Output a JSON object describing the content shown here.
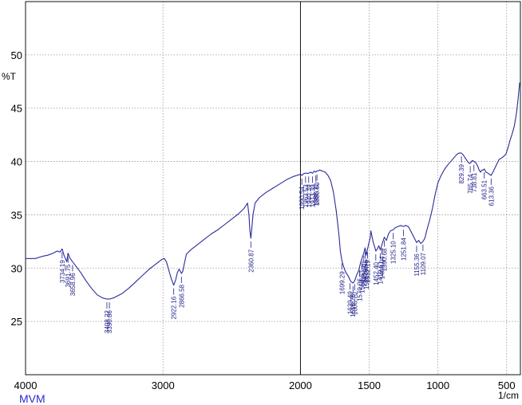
{
  "chart_data": {
    "type": "line",
    "title": "",
    "ylabel": "%T",
    "xlabel": "1/cm",
    "xlim": [
      4000,
      400
    ],
    "ylim": [
      20,
      55
    ],
    "x_ticks": [
      4000,
      3000,
      2000,
      1500,
      1000,
      500
    ],
    "y_ticks": [
      25,
      30,
      35,
      40,
      45,
      50
    ],
    "grid": true,
    "series": [
      {
        "color": "#2a2a9a",
        "points": [
          [
            4000,
            30.9
          ],
          [
            3930,
            30.9
          ],
          [
            3880,
            31.1
          ],
          [
            3840,
            31.2
          ],
          [
            3800,
            31.4
          ],
          [
            3770,
            31.6
          ],
          [
            3750,
            31.5
          ],
          [
            3734,
            31.8
          ],
          [
            3720,
            31.2
          ],
          [
            3700,
            30.6
          ],
          [
            3691,
            31.4
          ],
          [
            3675,
            30.9
          ],
          [
            3658,
            30.6
          ],
          [
            3640,
            30.3
          ],
          [
            3600,
            29.6
          ],
          [
            3560,
            28.8
          ],
          [
            3520,
            28.1
          ],
          [
            3480,
            27.5
          ],
          [
            3440,
            27.2
          ],
          [
            3408,
            27.1
          ],
          [
            3390,
            27.1
          ],
          [
            3360,
            27.2
          ],
          [
            3300,
            27.6
          ],
          [
            3250,
            28.1
          ],
          [
            3200,
            28.7
          ],
          [
            3150,
            29.3
          ],
          [
            3100,
            29.9
          ],
          [
            3050,
            30.4
          ],
          [
            3010,
            30.8
          ],
          [
            2990,
            30.9
          ],
          [
            2975,
            30.6
          ],
          [
            2960,
            29.9
          ],
          [
            2940,
            29.0
          ],
          [
            2922,
            28.4
          ],
          [
            2908,
            28.9
          ],
          [
            2895,
            29.6
          ],
          [
            2882,
            29.9
          ],
          [
            2866,
            29.5
          ],
          [
            2856,
            29.7
          ],
          [
            2845,
            30.4
          ],
          [
            2830,
            31.3
          ],
          [
            2800,
            31.7
          ],
          [
            2750,
            32.2
          ],
          [
            2700,
            32.7
          ],
          [
            2650,
            33.2
          ],
          [
            2600,
            33.6
          ],
          [
            2550,
            34.1
          ],
          [
            2500,
            34.6
          ],
          [
            2450,
            35.1
          ],
          [
            2410,
            35.6
          ],
          [
            2385,
            36.1
          ],
          [
            2375,
            35.0
          ],
          [
            2368,
            33.5
          ],
          [
            2361,
            32.8
          ],
          [
            2355,
            33.6
          ],
          [
            2345,
            35.0
          ],
          [
            2330,
            36.1
          ],
          [
            2300,
            36.6
          ],
          [
            2250,
            37.1
          ],
          [
            2200,
            37.5
          ],
          [
            2150,
            37.9
          ],
          [
            2100,
            38.3
          ],
          [
            2050,
            38.6
          ],
          [
            2000,
            38.8
          ],
          [
            1990,
            38.7
          ],
          [
            1983,
            38.8
          ],
          [
            1970,
            38.9
          ],
          [
            1955,
            38.9
          ],
          [
            1940,
            38.9
          ],
          [
            1925,
            39.0
          ],
          [
            1913,
            38.9
          ],
          [
            1900,
            39.1
          ],
          [
            1888,
            39.0
          ],
          [
            1880,
            39.1
          ],
          [
            1860,
            39.2
          ],
          [
            1840,
            39.1
          ],
          [
            1820,
            39.0
          ],
          [
            1800,
            38.7
          ],
          [
            1780,
            38.2
          ],
          [
            1760,
            37.1
          ],
          [
            1740,
            35.4
          ],
          [
            1720,
            33.1
          ],
          [
            1710,
            31.6
          ],
          [
            1700,
            30.8
          ],
          [
            1690,
            30.3
          ],
          [
            1680,
            29.9
          ],
          [
            1670,
            29.6
          ],
          [
            1660,
            29.4
          ],
          [
            1650,
            29.2
          ],
          [
            1640,
            28.9
          ],
          [
            1630,
            28.7
          ],
          [
            1618,
            28.6
          ],
          [
            1606,
            28.8
          ],
          [
            1590,
            29.4
          ],
          [
            1575,
            29.8
          ],
          [
            1563,
            30.5
          ],
          [
            1550,
            31.0
          ],
          [
            1540,
            31.4
          ],
          [
            1530,
            31.9
          ],
          [
            1521,
            31.2
          ],
          [
            1512,
            31.8
          ],
          [
            1503,
            32.3
          ],
          [
            1493,
            32.8
          ],
          [
            1488,
            33.5
          ],
          [
            1480,
            33.0
          ],
          [
            1470,
            32.4
          ],
          [
            1460,
            32.0
          ],
          [
            1452,
            31.6
          ],
          [
            1440,
            31.8
          ],
          [
            1430,
            32.1
          ],
          [
            1419,
            31.7
          ],
          [
            1405,
            32.3
          ],
          [
            1390,
            32.9
          ],
          [
            1375,
            32.6
          ],
          [
            1360,
            33.2
          ],
          [
            1345,
            33.5
          ],
          [
            1325,
            33.6
          ],
          [
            1310,
            33.8
          ],
          [
            1290,
            33.9
          ],
          [
            1270,
            34.0
          ],
          [
            1251,
            33.9
          ],
          [
            1235,
            34.0
          ],
          [
            1215,
            33.9
          ],
          [
            1195,
            33.4
          ],
          [
            1175,
            32.9
          ],
          [
            1155,
            32.4
          ],
          [
            1140,
            32.6
          ],
          [
            1125,
            32.3
          ],
          [
            1109,
            32.5
          ],
          [
            1095,
            32.8
          ],
          [
            1080,
            33.6
          ],
          [
            1060,
            34.5
          ],
          [
            1040,
            35.6
          ],
          [
            1020,
            36.9
          ],
          [
            1000,
            38.0
          ],
          [
            980,
            38.6
          ],
          [
            960,
            39.1
          ],
          [
            940,
            39.5
          ],
          [
            920,
            39.8
          ],
          [
            900,
            40.1
          ],
          [
            880,
            40.4
          ],
          [
            860,
            40.7
          ],
          [
            845,
            40.8
          ],
          [
            830,
            40.8
          ],
          [
            815,
            40.6
          ],
          [
            800,
            40.3
          ],
          [
            785,
            40.0
          ],
          [
            770,
            39.8
          ],
          [
            760,
            39.9
          ],
          [
            750,
            40.1
          ],
          [
            738,
            40.0
          ],
          [
            725,
            39.9
          ],
          [
            712,
            39.6
          ],
          [
            700,
            39.2
          ],
          [
            690,
            39.0
          ],
          [
            680,
            39.2
          ],
          [
            670,
            39.2
          ],
          [
            663,
            39.3
          ],
          [
            650,
            39.0
          ],
          [
            635,
            38.9
          ],
          [
            625,
            38.8
          ],
          [
            613,
            38.7
          ],
          [
            600,
            39.0
          ],
          [
            585,
            39.4
          ],
          [
            570,
            39.8
          ],
          [
            555,
            40.2
          ],
          [
            540,
            40.3
          ],
          [
            520,
            40.5
          ],
          [
            505,
            40.7
          ],
          [
            490,
            41.3
          ],
          [
            475,
            42.0
          ],
          [
            460,
            42.6
          ],
          [
            445,
            43.3
          ],
          [
            430,
            44.4
          ],
          [
            420,
            45.5
          ],
          [
            412,
            46.5
          ],
          [
            405,
            47.4
          ]
        ]
      }
    ],
    "peak_labels": [
      {
        "text": "3734.19",
        "x": 3734
      },
      {
        "text": "3691.75",
        "x": 3691
      },
      {
        "text": "3658.96",
        "x": 3658
      },
      {
        "text": "3408.22",
        "x": 3408
      },
      {
        "text": "3390.86",
        "x": 3390
      },
      {
        "text": "2922.16",
        "x": 2922
      },
      {
        "text": "2866.58",
        "x": 2866
      },
      {
        "text": "2360.87",
        "x": 2361
      },
      {
        "text": "1990.54",
        "x": 1990
      },
      {
        "text": "1963.53",
        "x": 1963
      },
      {
        "text": "1940.39",
        "x": 1940
      },
      {
        "text": "1913.39",
        "x": 1913
      },
      {
        "text": "1888.31",
        "x": 1888
      },
      {
        "text": "1880.60",
        "x": 1880
      },
      {
        "text": "1699.29",
        "x": 1699
      },
      {
        "text": "1639.49",
        "x": 1639
      },
      {
        "text": "1618.28",
        "x": 1618
      },
      {
        "text": "1606.70",
        "x": 1606
      },
      {
        "text": "1570.06",
        "x": 1570
      },
      {
        "text": "1554.63",
        "x": 1554
      },
      {
        "text": "1539.20",
        "x": 1539
      },
      {
        "text": "1529.55",
        "x": 1529
      },
      {
        "text": "1521.84",
        "x": 1521
      },
      {
        "text": "1512.19",
        "x": 1512
      },
      {
        "text": "1452.40",
        "x": 1452
      },
      {
        "text": "1419.61",
        "x": 1419
      },
      {
        "text": "1408.04",
        "x": 1408
      },
      {
        "text": "1390.68",
        "x": 1390
      },
      {
        "text": "1325.10",
        "x": 1325
      },
      {
        "text": "1251.84",
        "x": 1251
      },
      {
        "text": "1155.36",
        "x": 1155
      },
      {
        "text": "1109.07",
        "x": 1109
      },
      {
        "text": "829.39",
        "x": 829
      },
      {
        "text": "765.74",
        "x": 765
      },
      {
        "text": "738.81",
        "x": 738
      },
      {
        "text": "663.51",
        "x": 663
      },
      {
        "text": "613.36",
        "x": 613
      }
    ]
  },
  "footer": {
    "brand": "MVM",
    "unit": "1/cm"
  },
  "style": {
    "trace_color": "#2a2a9a",
    "label_color": "#1f1f8a",
    "brand_color": "#2b2bd8"
  }
}
